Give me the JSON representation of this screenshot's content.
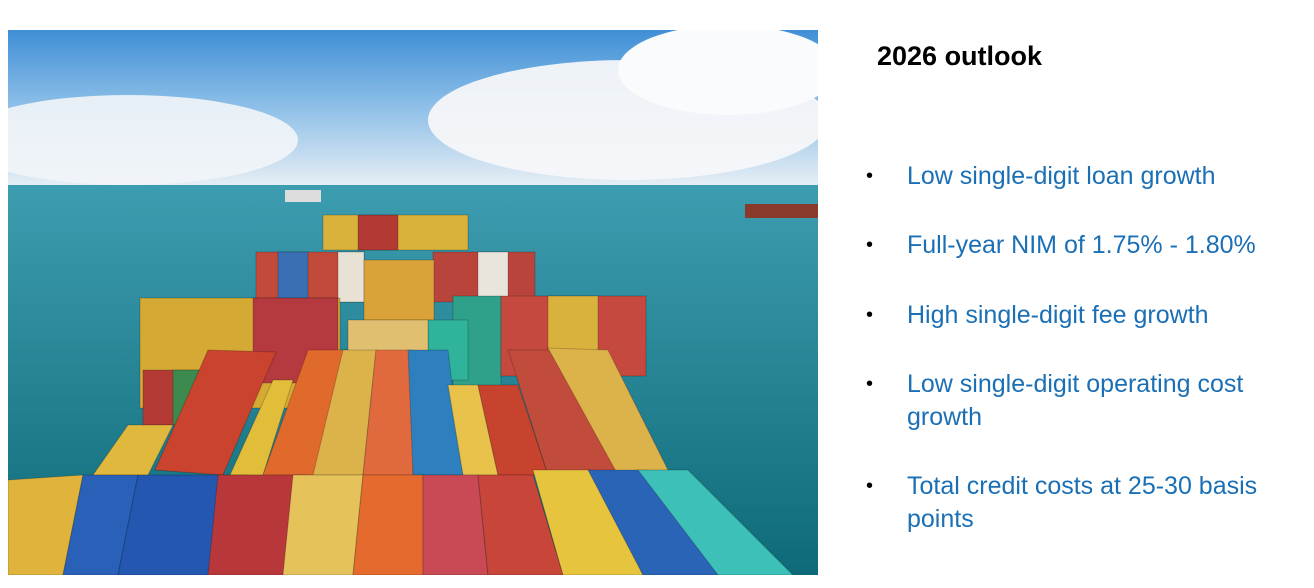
{
  "slide": {
    "title": "2026 outlook",
    "image_description_icon": "container-ship-photo",
    "bullets": [
      "Low single-digit loan growth",
      "Full-year NIM of 1.75% - 1.80%",
      "High single-digit fee growth",
      "Low single-digit operating cost growth",
      "Total credit costs at 25-30 basis points"
    ],
    "colors": {
      "bullet_text": "#1a6fb5",
      "title": "#000000"
    }
  }
}
